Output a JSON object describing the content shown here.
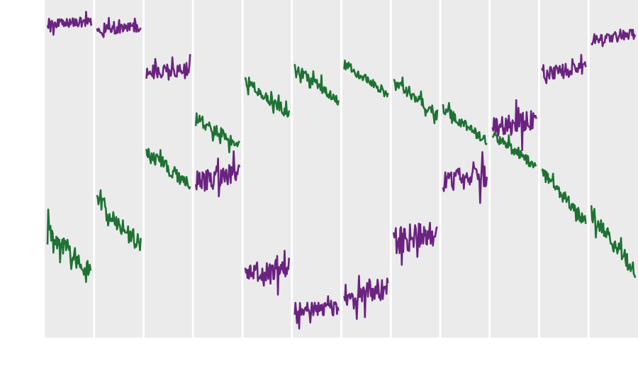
{
  "chart_data": {
    "type": "line",
    "layout": "faceted-columns",
    "facet_count": 12,
    "grid": true,
    "legend": "none",
    "title": "",
    "xlabel": "",
    "ylabel": "",
    "ylim": [
      0,
      100
    ],
    "background": "#ebebeb",
    "panel_divider_color": "#ffffff",
    "series": [
      {
        "color": "#6a2380",
        "panels": [
          {
            "start": 93.0,
            "end": 93.5,
            "amp": 1.8
          },
          {
            "start": 91.0,
            "end": 92.0,
            "amp": 1.8
          },
          {
            "start": 78.5,
            "end": 79.5,
            "amp": 2.5
          },
          {
            "start": 46.0,
            "end": 49.0,
            "amp": 4.0
          },
          {
            "start": 19.0,
            "end": 20.5,
            "amp": 4.0
          },
          {
            "start": 8.5,
            "end": 9.0,
            "amp": 2.8
          },
          {
            "start": 12.5,
            "end": 14.5,
            "amp": 4.0
          },
          {
            "start": 28.5,
            "end": 31.5,
            "amp": 5.0
          },
          {
            "start": 46.5,
            "end": 48.0,
            "amp": 4.0
          },
          {
            "start": 62.0,
            "end": 64.5,
            "amp": 3.8
          },
          {
            "start": 78.0,
            "end": 80.0,
            "amp": 2.8
          },
          {
            "start": 88.0,
            "end": 90.0,
            "amp": 2.0
          }
        ]
      },
      {
        "color": "#1e7233",
        "panels": [
          {
            "start": 32.0,
            "end": 19.0,
            "amp": 3.5
          },
          {
            "start": 41.0,
            "end": 27.0,
            "amp": 3.5
          },
          {
            "start": 55.0,
            "end": 45.0,
            "amp": 2.5
          },
          {
            "start": 65.0,
            "end": 57.0,
            "amp": 2.2
          },
          {
            "start": 76.0,
            "end": 66.0,
            "amp": 2.0
          },
          {
            "start": 80.0,
            "end": 70.0,
            "amp": 1.8
          },
          {
            "start": 81.0,
            "end": 72.0,
            "amp": 1.8
          },
          {
            "start": 76.0,
            "end": 66.0,
            "amp": 2.0
          },
          {
            "start": 68.0,
            "end": 58.0,
            "amp": 1.8
          },
          {
            "start": 60.0,
            "end": 50.5,
            "amp": 1.8
          },
          {
            "start": 49.0,
            "end": 34.0,
            "amp": 2.5
          },
          {
            "start": 37.0,
            "end": 19.5,
            "amp": 3.0
          }
        ]
      }
    ]
  }
}
